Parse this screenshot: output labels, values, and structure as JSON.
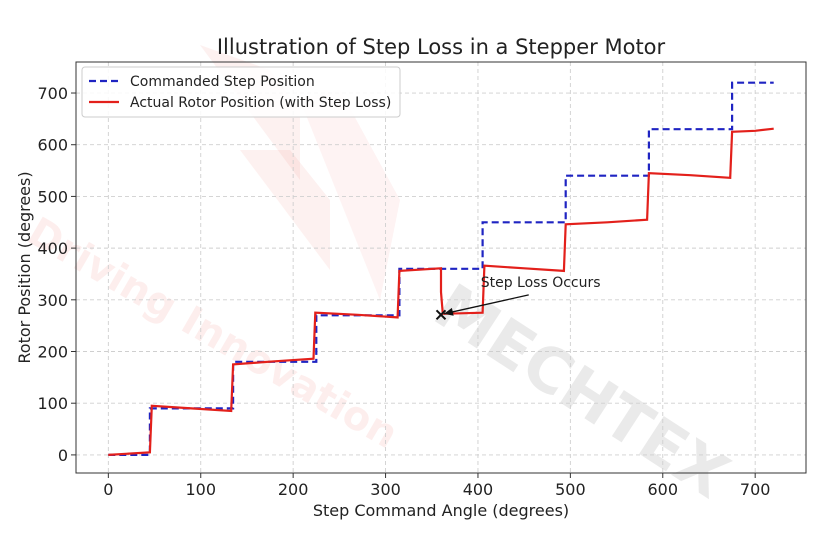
{
  "watermark": {
    "brand": "MECHTEX",
    "tagline": "Driving Innovation",
    "color": "#e8392f"
  },
  "chart_data": {
    "type": "line",
    "title": "Illustration of Step Loss in a Stepper Motor",
    "xlabel": "Step Command Angle (degrees)",
    "ylabel": "Rotor Position (degrees)",
    "xlim": [
      -35,
      755
    ],
    "ylim": [
      -35,
      760
    ],
    "xticks": [
      0,
      100,
      200,
      300,
      400,
      500,
      600,
      700
    ],
    "yticks": [
      0,
      100,
      200,
      300,
      400,
      500,
      600,
      700
    ],
    "grid": true,
    "legend_position": "top-left",
    "series": [
      {
        "name": "Commanded Step Position",
        "color": "#1f24c2",
        "dash": true,
        "x": [
          0,
          45,
          45,
          135,
          135,
          225,
          225,
          315,
          315,
          405,
          405,
          495,
          495,
          585,
          585,
          675,
          675,
          720
        ],
        "y": [
          0,
          0,
          90,
          90,
          180,
          180,
          270,
          270,
          360,
          360,
          450,
          450,
          540,
          540,
          630,
          630,
          720,
          720
        ]
      },
      {
        "name": "Actual Rotor Position (with Step Loss)",
        "color": "#e3201b",
        "dash": false,
        "x": [
          0,
          45,
          47,
          90,
          133,
          135,
          180,
          222,
          224,
          270,
          313,
          315,
          360,
          360,
          362,
          405,
          407,
          450,
          493,
          495,
          540,
          583,
          585,
          630,
          673,
          675,
          700,
          720
        ],
        "y": [
          0,
          5,
          95,
          90,
          85,
          175,
          181,
          186,
          275,
          271,
          266,
          356,
          361,
          315,
          273,
          275,
          366,
          361,
          356,
          446,
          450,
          455,
          545,
          541,
          536,
          625,
          627,
          631
        ]
      }
    ],
    "annotations": [
      {
        "text": "Step Loss Occurs",
        "point": [
          360,
          271
        ],
        "text_at": [
          403,
          325
        ],
        "marker": "x"
      }
    ]
  }
}
